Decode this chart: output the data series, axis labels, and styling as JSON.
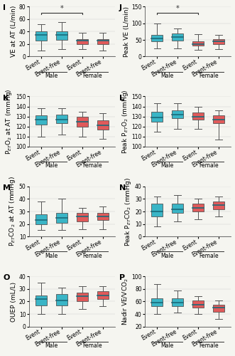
{
  "panels": [
    {
      "label": "I",
      "ylabel": "VE at AT (L/min)",
      "ylim": [
        0,
        80
      ],
      "yticks": [
        0,
        20,
        40,
        60,
        80
      ],
      "sig_bracket": true,
      "sig_text": "*",
      "boxes": [
        {
          "group": "Male",
          "subgroup": "Event",
          "color": "#3ab5c6",
          "whislo": 10,
          "q1": 25,
          "med": 35,
          "q3": 40,
          "whishi": 52
        },
        {
          "group": "Male",
          "subgroup": "Event-free",
          "color": "#3ab5c6",
          "whislo": 12,
          "q1": 27,
          "med": 35,
          "q3": 40,
          "whishi": 55
        },
        {
          "group": "Female",
          "subgroup": "Event",
          "color": "#e05a5a",
          "whislo": 12,
          "q1": 20,
          "med": 25,
          "q3": 28,
          "whishi": 38
        },
        {
          "group": "Female",
          "subgroup": "Event-free",
          "color": "#e05a5a",
          "whislo": 10,
          "q1": 20,
          "med": 25,
          "q3": 28,
          "whishi": 38
        }
      ]
    },
    {
      "label": "J",
      "ylabel": "Peak VE (L/min)",
      "ylim": [
        0,
        150
      ],
      "yticks": [
        0,
        50,
        100,
        150
      ],
      "sig_bracket": true,
      "sig_text": "*",
      "boxes": [
        {
          "group": "Male",
          "subgroup": "Event",
          "color": "#3ab5c6",
          "whislo": 25,
          "q1": 45,
          "med": 55,
          "q3": 65,
          "whishi": 100
        },
        {
          "group": "Male",
          "subgroup": "Event-free",
          "color": "#3ab5c6",
          "whislo": 25,
          "q1": 48,
          "med": 58,
          "q3": 70,
          "whishi": 85
        },
        {
          "group": "Female",
          "subgroup": "Event",
          "color": "#e05a5a",
          "whislo": 20,
          "q1": 32,
          "med": 38,
          "q3": 45,
          "whishi": 68
        },
        {
          "group": "Female",
          "subgroup": "Event-free",
          "color": "#e05a5a",
          "whislo": 22,
          "q1": 38,
          "med": 45,
          "q3": 52,
          "whishi": 65
        }
      ]
    },
    {
      "label": "K",
      "ylabel": "P$_{ET}$O$_2$ at AT (mmHg)",
      "ylim": [
        100,
        150
      ],
      "yticks": [
        100,
        110,
        120,
        130,
        140,
        150
      ],
      "sig_bracket": false,
      "sig_text": "",
      "boxes": [
        {
          "group": "Male",
          "subgroup": "Event",
          "color": "#3ab5c6",
          "whislo": 110,
          "q1": 122,
          "med": 127,
          "q3": 131,
          "whishi": 138
        },
        {
          "group": "Male",
          "subgroup": "Event-free",
          "color": "#3ab5c6",
          "whislo": 112,
          "q1": 123,
          "med": 127,
          "q3": 132,
          "whishi": 138
        },
        {
          "group": "Female",
          "subgroup": "Event",
          "color": "#e05a5a",
          "whislo": 110,
          "q1": 120,
          "med": 125,
          "q3": 130,
          "whishi": 135
        },
        {
          "group": "Female",
          "subgroup": "Event-free",
          "color": "#e05a5a",
          "whislo": 108,
          "q1": 117,
          "med": 121,
          "q3": 126,
          "whishi": 133
        }
      ]
    },
    {
      "label": "L",
      "ylabel": "Peak P$_{ET}$O$_2$ (mmHg)",
      "ylim": [
        100,
        150
      ],
      "yticks": [
        100,
        110,
        120,
        130,
        140,
        150
      ],
      "sig_bracket": false,
      "sig_text": "",
      "boxes": [
        {
          "group": "Male",
          "subgroup": "Event",
          "color": "#3ab5c6",
          "whislo": 115,
          "q1": 125,
          "med": 129,
          "q3": 135,
          "whishi": 143
        },
        {
          "group": "Male",
          "subgroup": "Event-free",
          "color": "#3ab5c6",
          "whislo": 118,
          "q1": 128,
          "med": 132,
          "q3": 136,
          "whishi": 143
        },
        {
          "group": "Female",
          "subgroup": "Event",
          "color": "#e05a5a",
          "whislo": 118,
          "q1": 127,
          "med": 130,
          "q3": 134,
          "whishi": 140
        },
        {
          "group": "Female",
          "subgroup": "Event-free",
          "color": "#e05a5a",
          "whislo": 107,
          "q1": 123,
          "med": 127,
          "q3": 131,
          "whishi": 136
        }
      ]
    },
    {
      "label": "M",
      "ylabel": "P$_{ET}$CO$_2$ at AT (mmHg)",
      "ylim": [
        10,
        50
      ],
      "yticks": [
        10,
        20,
        30,
        40,
        50
      ],
      "sig_bracket": false,
      "sig_text": "",
      "boxes": [
        {
          "group": "Male",
          "subgroup": "Event",
          "color": "#3ab5c6",
          "whislo": 15,
          "q1": 20,
          "med": 23,
          "q3": 28,
          "whishi": 38
        },
        {
          "group": "Male",
          "subgroup": "Event-free",
          "color": "#3ab5c6",
          "whislo": 15,
          "q1": 21,
          "med": 25,
          "q3": 29,
          "whishi": 40
        },
        {
          "group": "Female",
          "subgroup": "Event",
          "color": "#e05a5a",
          "whislo": 16,
          "q1": 22,
          "med": 26,
          "q3": 29,
          "whishi": 33
        },
        {
          "group": "Female",
          "subgroup": "Event-free",
          "color": "#e05a5a",
          "whislo": 16,
          "q1": 23,
          "med": 26,
          "q3": 29,
          "whishi": 34
        }
      ]
    },
    {
      "label": "N",
      "ylabel": "Peak P$_{ET}$CO$_2$ (mmHg)",
      "ylim": [
        0,
        40
      ],
      "yticks": [
        0,
        10,
        20,
        30,
        40
      ],
      "sig_bracket": false,
      "sig_text": "",
      "boxes": [
        {
          "group": "Male",
          "subgroup": "Event",
          "color": "#3ab5c6",
          "whislo": 8,
          "q1": 16,
          "med": 20,
          "q3": 26,
          "whishi": 32
        },
        {
          "group": "Male",
          "subgroup": "Event-free",
          "color": "#3ab5c6",
          "whislo": 12,
          "q1": 19,
          "med": 22,
          "q3": 26,
          "whishi": 33
        },
        {
          "group": "Female",
          "subgroup": "Event",
          "color": "#e05a5a",
          "whislo": 14,
          "q1": 20,
          "med": 23,
          "q3": 26,
          "whishi": 30
        },
        {
          "group": "Female",
          "subgroup": "Event-free",
          "color": "#e05a5a",
          "whislo": 16,
          "q1": 22,
          "med": 25,
          "q3": 28,
          "whishi": 32
        }
      ]
    },
    {
      "label": "O",
      "ylabel": "OUEP (mL/L)",
      "ylim": [
        0,
        40
      ],
      "yticks": [
        0,
        10,
        20,
        30,
        40
      ],
      "sig_bracket": false,
      "sig_text": "",
      "boxes": [
        {
          "group": "Male",
          "subgroup": "Event",
          "color": "#3ab5c6",
          "whislo": 10,
          "q1": 17,
          "med": 22,
          "q3": 25,
          "whishi": 35
        },
        {
          "group": "Male",
          "subgroup": "Event-free",
          "color": "#3ab5c6",
          "whislo": 10,
          "q1": 17,
          "med": 21,
          "q3": 26,
          "whishi": 31
        },
        {
          "group": "Female",
          "subgroup": "Event",
          "color": "#e05a5a",
          "whislo": 14,
          "q1": 20,
          "med": 24,
          "q3": 27,
          "whishi": 32
        },
        {
          "group": "Female",
          "subgroup": "Event-free",
          "color": "#e05a5a",
          "whislo": 16,
          "q1": 22,
          "med": 25,
          "q3": 28,
          "whishi": 32
        }
      ]
    },
    {
      "label": "P",
      "ylabel": "Nadir VE/VCO$_2$",
      "ylim": [
        20,
        100
      ],
      "yticks": [
        20,
        40,
        60,
        80,
        100
      ],
      "sig_bracket": false,
      "sig_text": "",
      "boxes": [
        {
          "group": "Male",
          "subgroup": "Event",
          "color": "#3ab5c6",
          "whislo": 40,
          "q1": 52,
          "med": 58,
          "q3": 65,
          "whishi": 88
        },
        {
          "group": "Male",
          "subgroup": "Event-free",
          "color": "#3ab5c6",
          "whislo": 42,
          "q1": 52,
          "med": 58,
          "q3": 65,
          "whishi": 78
        },
        {
          "group": "Female",
          "subgroup": "Event",
          "color": "#e05a5a",
          "whislo": 40,
          "q1": 50,
          "med": 55,
          "q3": 62,
          "whishi": 68
        },
        {
          "group": "Female",
          "subgroup": "Event-free",
          "color": "#e05a5a",
          "whislo": 32,
          "q1": 44,
          "med": 50,
          "q3": 55,
          "whishi": 62
        }
      ]
    }
  ],
  "box_width": 0.55,
  "background_color": "#f5f5f0",
  "male_label": "Male",
  "female_label": "Female",
  "xticklabels": [
    "Event",
    "Event-free",
    "Event",
    "Event-free"
  ],
  "fontsize_label": 6.5,
  "fontsize_tick": 5.5,
  "fontsize_panel": 8,
  "median_color": "#1a6a7a",
  "whisker_color": "#555555",
  "cap_color": "#555555"
}
